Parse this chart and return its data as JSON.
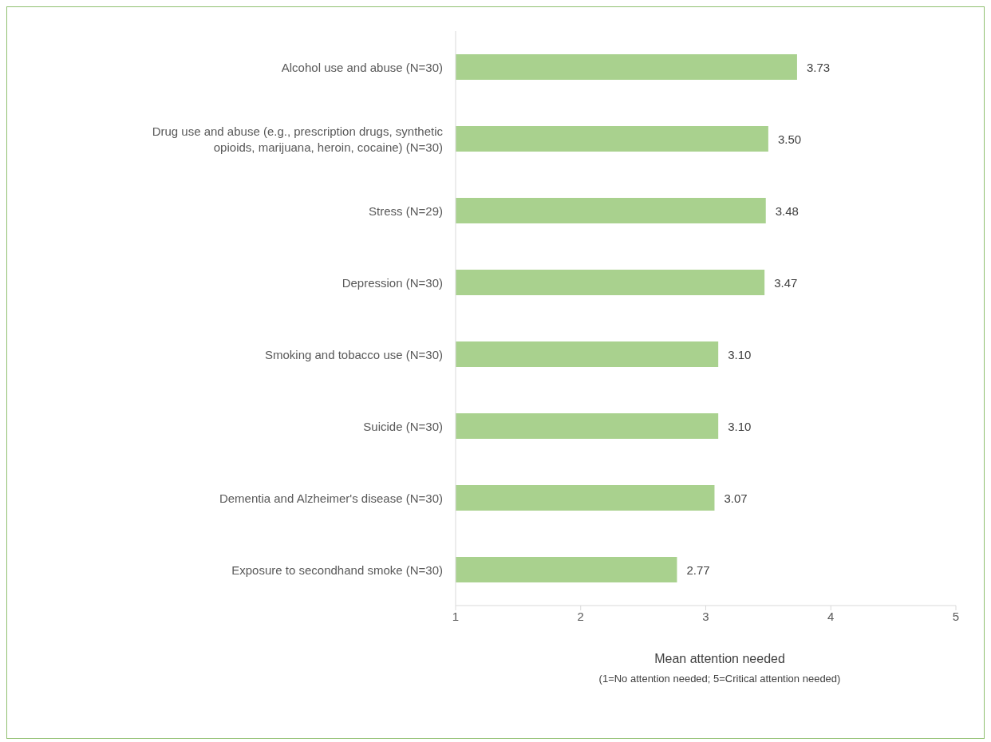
{
  "chart_data": {
    "type": "bar",
    "orientation": "horizontal",
    "categories": [
      "Alcohol use and abuse (N=30)",
      "Drug use and abuse (e.g., prescription drugs, synthetic opioids, marijuana, heroin, cocaine) (N=30)",
      "Stress (N=29)",
      "Depression (N=30)",
      "Smoking and tobacco use (N=30)",
      "Suicide (N=30)",
      "Dementia and Alzheimer's disease (N=30)",
      "Exposure to secondhand smoke (N=30)"
    ],
    "values": [
      3.73,
      3.5,
      3.48,
      3.47,
      3.1,
      3.1,
      3.07,
      2.77
    ],
    "value_labels": [
      "3.73",
      "3.50",
      "3.48",
      "3.47",
      "3.10",
      "3.10",
      "3.07",
      "2.77"
    ],
    "color": "#a9d18e",
    "xlim": [
      1,
      5
    ],
    "xticks": [
      1,
      2,
      3,
      4,
      5
    ],
    "xlabel": "Mean attention needed",
    "annotations": [
      "(1=No attention needed; 5=Critical attention needed)"
    ],
    "grid": false,
    "legend": false
  }
}
